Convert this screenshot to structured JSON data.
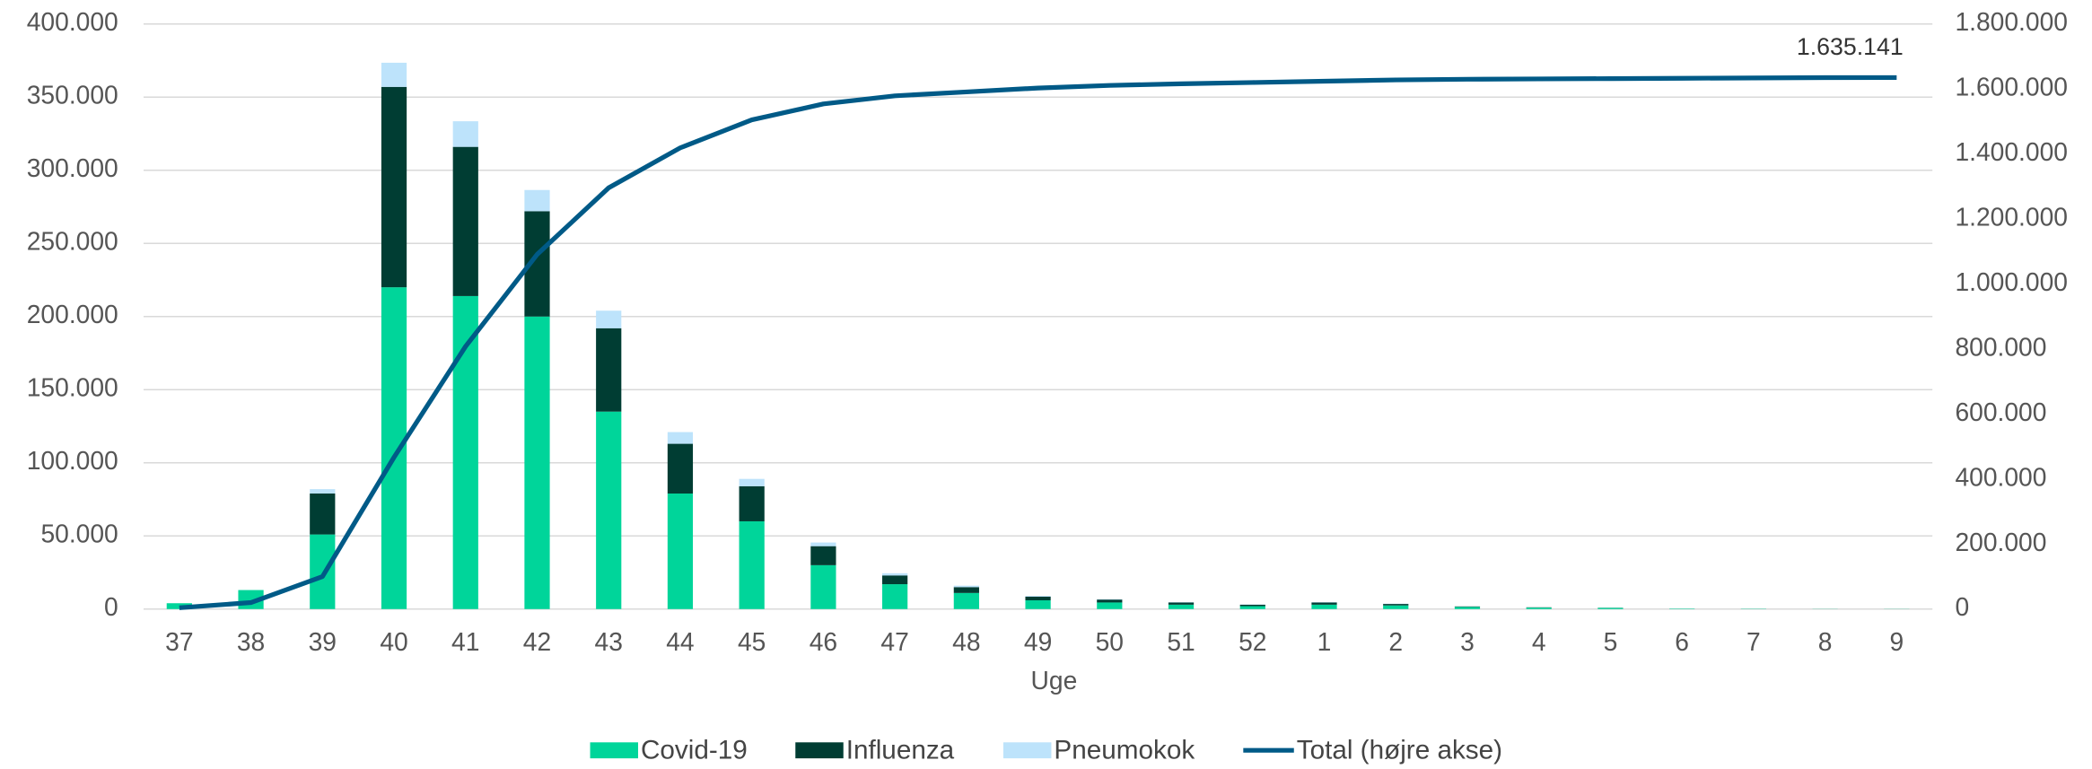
{
  "chart_data": {
    "type": "bar",
    "x_label": "Uge",
    "categories": [
      "37",
      "38",
      "39",
      "40",
      "41",
      "42",
      "43",
      "44",
      "45",
      "46",
      "47",
      "48",
      "49",
      "50",
      "51",
      "52",
      "1",
      "2",
      "3",
      "4",
      "5",
      "6",
      "7",
      "8",
      "9"
    ],
    "stacked": true,
    "series": [
      {
        "name": "Covid-19",
        "color": "#00d59a",
        "values": [
          4000,
          13000,
          51000,
          220000,
          214000,
          200000,
          135000,
          79000,
          60000,
          30000,
          17000,
          11000,
          6000,
          4500,
          3000,
          2000,
          3000,
          2500,
          1500,
          1000,
          800,
          300,
          200,
          100,
          100
        ]
      },
      {
        "name": "Influenza",
        "color": "#003d33",
        "values": [
          0,
          0,
          28000,
          137000,
          102000,
          72000,
          57000,
          34000,
          24000,
          13000,
          6000,
          4000,
          2500,
          2000,
          1500,
          1000,
          1500,
          1000,
          300,
          200,
          100,
          0,
          0,
          0,
          0
        ]
      },
      {
        "name": "Pneumokok",
        "color": "#bde3fb",
        "values": [
          0,
          0,
          3000,
          16500,
          17500,
          14500,
          12000,
          8000,
          5000,
          2500,
          1500,
          1000,
          500,
          300,
          200,
          200,
          200,
          200,
          0,
          0,
          0,
          0,
          0,
          0,
          0
        ]
      },
      {
        "name": "Total (højre akse)",
        "color": "#005a87",
        "type": "line",
        "axis": "y2",
        "values": [
          4000,
          20000,
          100000,
          467000,
          808000,
          1091000,
          1296000,
          1419000,
          1505000,
          1554000,
          1579000,
          1591000,
          1603000,
          1611000,
          1616000,
          1620000,
          1624000,
          1628000,
          1630000,
          1631000,
          1632000,
          1633000,
          1634000,
          1635000,
          1635141
        ]
      }
    ],
    "annotation": "1.635.141",
    "ylim": [
      0,
      400000
    ],
    "yticks": [
      0,
      {
        "value": 50000,
        "label": "50.000"
      },
      {
        "value": 100000,
        "label": "100.000"
      },
      {
        "value": 150000,
        "label": "150.000"
      },
      {
        "value": 200000,
        "label": "200.000"
      },
      {
        "value": 250000,
        "label": "250.000"
      },
      {
        "value": 300000,
        "label": "300.000"
      },
      {
        "value": 350000,
        "label": "350.000"
      },
      {
        "value": 400000,
        "label": "400.000"
      }
    ],
    "y2lim": [
      0,
      1800000
    ],
    "y2ticks": [
      0,
      {
        "value": 200000,
        "label": "200.000"
      },
      {
        "value": 400000,
        "label": "400.000"
      },
      {
        "value": 600000,
        "label": "600.000"
      },
      {
        "value": 800000,
        "label": "800.000"
      },
      {
        "value": 1000000,
        "label": "1.000.000"
      },
      {
        "value": 1200000,
        "label": "1.200.000"
      },
      {
        "value": 1400000,
        "label": "1.400.000"
      },
      {
        "value": 1600000,
        "label": "1.600.000"
      },
      {
        "value": 1800000,
        "label": "1.800.000"
      }
    ],
    "grid": true,
    "legend": "bottom"
  }
}
